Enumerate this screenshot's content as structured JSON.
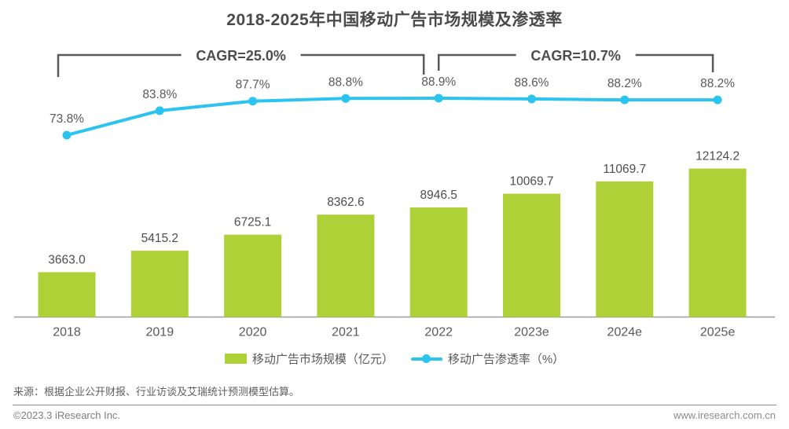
{
  "title": "2018-2025年中国移动广告市场规模及渗透率",
  "chart_data": {
    "type": "bar",
    "subtype": "combo-bar-line",
    "categories": [
      "2018",
      "2019",
      "2020",
      "2021",
      "2022",
      "2023e",
      "2024e",
      "2025e"
    ],
    "series": [
      {
        "name": "移动广告市场规模（亿元）",
        "type": "bar",
        "color": "#afd138",
        "values": [
          3663.0,
          5415.2,
          6725.1,
          8362.6,
          8946.5,
          10069.7,
          11069.7,
          12124.2
        ]
      },
      {
        "name": "移动广告渗透率（%）",
        "type": "line",
        "color": "#2bc3f0",
        "values": [
          73.8,
          83.8,
          87.7,
          88.8,
          88.9,
          88.6,
          88.2,
          88.2
        ]
      }
    ],
    "annotations": [
      {
        "label": "CAGR=25.0%",
        "from_index": 0,
        "to_index": 4
      },
      {
        "label": "CAGR=10.7%",
        "from_index": 4,
        "to_index": 7
      }
    ],
    "title": "2018-2025年中国移动广告市场规模及渗透率",
    "xlabel": "",
    "ylabel": "",
    "grid": false,
    "legend_position": "bottom",
    "label_color": "#595959",
    "bracket_color": "#595959"
  },
  "footer": {
    "source": "来源：根据企业公开财报、行业访谈及艾瑞统计预测模型估算。",
    "copyright": "©2023.3 iResearch Inc.",
    "website": "www.iresearch.com.cn"
  }
}
